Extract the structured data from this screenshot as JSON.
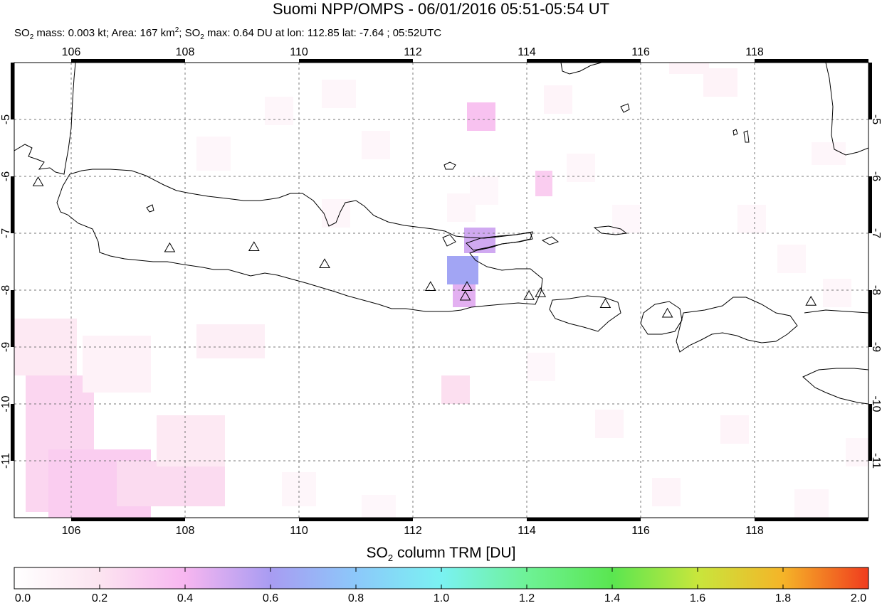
{
  "title": "Suomi NPP/OMPS - 06/01/2016 05:51-05:54 UT",
  "subtitle": {
    "mass_prefix": "SO",
    "mass_sub": "2",
    "mass_text": " mass: 0.003 kt; Area: 167 km",
    "area_sup": "2",
    "max_prefix": "; SO",
    "max_sub": "2",
    "max_text": " max: 0.64 DU at lon: 112.85 lat: -7.64 ; 05:52UTC"
  },
  "colorbar": {
    "title_prefix": "SO",
    "title_sub": "2",
    "title_text": " column TRM [DU]",
    "min": 0.0,
    "max": 2.0,
    "tick_labels": [
      "0.0",
      "0.2",
      "0.4",
      "0.6",
      "0.8",
      "1.0",
      "1.2",
      "1.4",
      "1.6",
      "1.8",
      "2.0"
    ],
    "stops": [
      {
        "v": 0.0,
        "c": "#ffffff"
      },
      {
        "v": 0.2,
        "c": "#fce4f0"
      },
      {
        "v": 0.4,
        "c": "#f7b6f0"
      },
      {
        "v": 0.6,
        "c": "#a89cf2"
      },
      {
        "v": 0.8,
        "c": "#8cc8fa"
      },
      {
        "v": 1.0,
        "c": "#7af2f2"
      },
      {
        "v": 1.2,
        "c": "#6ef296"
      },
      {
        "v": 1.4,
        "c": "#5ae650"
      },
      {
        "v": 1.6,
        "c": "#c8e63c"
      },
      {
        "v": 1.8,
        "c": "#f5b428"
      },
      {
        "v": 2.0,
        "c": "#f03c1e"
      }
    ]
  },
  "map": {
    "lon_range": [
      105.0,
      120.0
    ],
    "lat_range": [
      -12.0,
      -4.0
    ],
    "lon_ticks": [
      "106",
      "108",
      "110",
      "112",
      "114",
      "116",
      "118"
    ],
    "lat_ticks": [
      "-5",
      "-6",
      "-7",
      "-8",
      "-9",
      "-10",
      "-11"
    ],
    "grid": true,
    "volcanoes": [
      {
        "lon": 105.42,
        "lat": -6.1
      },
      {
        "lon": 107.73,
        "lat": -7.26
      },
      {
        "lon": 109.21,
        "lat": -7.24
      },
      {
        "lon": 110.45,
        "lat": -7.54
      },
      {
        "lon": 112.31,
        "lat": -7.94
      },
      {
        "lon": 112.95,
        "lat": -7.94
      },
      {
        "lon": 112.92,
        "lat": -8.11
      },
      {
        "lon": 114.04,
        "lat": -8.1
      },
      {
        "lon": 114.24,
        "lat": -8.05
      },
      {
        "lon": 115.38,
        "lat": -8.24
      },
      {
        "lon": 116.47,
        "lat": -8.41
      },
      {
        "lon": 118.99,
        "lat": -8.2
      }
    ],
    "so2_pixels": [
      {
        "lon": 112.6,
        "lat": -7.4,
        "dlon": 0.55,
        "dlat": 0.5,
        "du": 0.64
      },
      {
        "lon": 112.7,
        "lat": -7.9,
        "dlon": 0.4,
        "dlat": 0.4,
        "du": 0.45
      },
      {
        "lon": 112.9,
        "lat": -6.9,
        "dlon": 0.55,
        "dlat": 0.45,
        "du": 0.5
      },
      {
        "lon": 112.95,
        "lat": -4.7,
        "dlon": 0.5,
        "dlat": 0.5,
        "du": 0.35
      },
      {
        "lon": 114.15,
        "lat": -5.9,
        "dlon": 0.3,
        "dlat": 0.45,
        "du": 0.3
      },
      {
        "lon": 112.5,
        "lat": -9.5,
        "dlon": 0.5,
        "dlat": 0.5,
        "du": 0.22
      },
      {
        "lon": 105.2,
        "lat": -9.5,
        "dlon": 1.2,
        "dlat": 2.4,
        "du": 0.26
      },
      {
        "lon": 105.6,
        "lat": -10.8,
        "dlon": 1.8,
        "dlat": 1.2,
        "du": 0.3
      },
      {
        "lon": 106.8,
        "lat": -11.0,
        "dlon": 1.9,
        "dlat": 0.8,
        "du": 0.24
      },
      {
        "lon": 105.0,
        "lat": -8.5,
        "dlon": 1.1,
        "dlat": 1.0,
        "du": 0.16
      },
      {
        "lon": 107.5,
        "lat": -10.2,
        "dlon": 1.2,
        "dlat": 0.9,
        "du": 0.16
      },
      {
        "lon": 108.2,
        "lat": -8.6,
        "dlon": 1.2,
        "dlat": 0.6,
        "du": 0.12
      },
      {
        "lon": 106.2,
        "lat": -8.8,
        "dlon": 1.2,
        "dlat": 1.0,
        "du": 0.1
      },
      {
        "lon": 108.2,
        "lat": -5.3,
        "dlon": 0.6,
        "dlat": 0.6,
        "du": 0.07
      },
      {
        "lon": 109.4,
        "lat": -4.6,
        "dlon": 0.5,
        "dlat": 0.5,
        "du": 0.07
      },
      {
        "lon": 110.4,
        "lat": -4.3,
        "dlon": 0.6,
        "dlat": 0.5,
        "du": 0.07
      },
      {
        "lon": 111.1,
        "lat": -5.2,
        "dlon": 0.5,
        "dlat": 0.5,
        "du": 0.07
      },
      {
        "lon": 110.4,
        "lat": -6.4,
        "dlon": 0.5,
        "dlat": 0.5,
        "du": 0.07
      },
      {
        "lon": 112.6,
        "lat": -6.3,
        "dlon": 0.5,
        "dlat": 0.5,
        "du": 0.07
      },
      {
        "lon": 113.0,
        "lat": -6.0,
        "dlon": 0.5,
        "dlat": 0.5,
        "du": 0.06
      },
      {
        "lon": 114.3,
        "lat": -4.4,
        "dlon": 0.5,
        "dlat": 0.5,
        "du": 0.08
      },
      {
        "lon": 114.7,
        "lat": -5.6,
        "dlon": 0.5,
        "dlat": 0.5,
        "du": 0.07
      },
      {
        "lon": 115.5,
        "lat": -6.5,
        "dlon": 0.5,
        "dlat": 0.5,
        "du": 0.06
      },
      {
        "lon": 116.5,
        "lat": -3.8,
        "dlon": 0.7,
        "dlat": 0.4,
        "du": 0.09
      },
      {
        "lon": 117.1,
        "lat": -4.1,
        "dlon": 0.6,
        "dlat": 0.5,
        "du": 0.09
      },
      {
        "lon": 117.7,
        "lat": -6.5,
        "dlon": 0.5,
        "dlat": 0.5,
        "du": 0.07
      },
      {
        "lon": 118.4,
        "lat": -7.2,
        "dlon": 0.5,
        "dlat": 0.5,
        "du": 0.07
      },
      {
        "lon": 119.2,
        "lat": -7.8,
        "dlon": 0.5,
        "dlat": 0.5,
        "du": 0.07
      },
      {
        "lon": 119.0,
        "lat": -5.4,
        "dlon": 0.6,
        "dlat": 0.4,
        "du": 0.07
      },
      {
        "lon": 114.0,
        "lat": -9.1,
        "dlon": 0.5,
        "dlat": 0.5,
        "du": 0.06
      },
      {
        "lon": 115.2,
        "lat": -10.1,
        "dlon": 0.5,
        "dlat": 0.5,
        "du": 0.08
      },
      {
        "lon": 117.4,
        "lat": -10.2,
        "dlon": 0.5,
        "dlat": 0.5,
        "du": 0.08
      },
      {
        "lon": 116.2,
        "lat": -11.3,
        "dlon": 0.5,
        "dlat": 0.5,
        "du": 0.08
      },
      {
        "lon": 118.7,
        "lat": -11.5,
        "dlon": 0.6,
        "dlat": 0.5,
        "du": 0.07
      },
      {
        "lon": 119.6,
        "lat": -10.6,
        "dlon": 0.4,
        "dlat": 0.5,
        "du": 0.07
      },
      {
        "lon": 109.7,
        "lat": -11.2,
        "dlon": 0.6,
        "dlat": 0.6,
        "du": 0.07
      },
      {
        "lon": 111.1,
        "lat": -11.6,
        "dlon": 0.6,
        "dlat": 0.5,
        "du": 0.06
      }
    ]
  }
}
